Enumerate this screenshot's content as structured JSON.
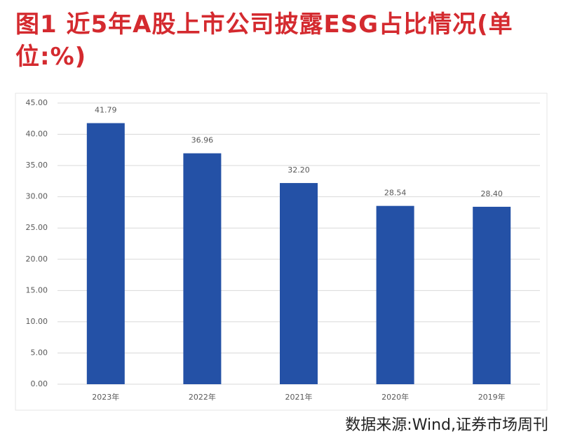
{
  "chart_data": {
    "type": "bar",
    "title": "图1 近5年A股上市公司披露ESG占比情况(单位:%)",
    "categories": [
      "2023年",
      "2022年",
      "2021年",
      "2020年",
      "2019年"
    ],
    "values": [
      41.79,
      36.96,
      32.2,
      28.54,
      28.4
    ],
    "value_labels": [
      "41.79",
      "36.96",
      "32.20",
      "28.54",
      "28.40"
    ],
    "color": "#2451a6",
    "ylim": [
      0,
      45
    ],
    "yticks": [
      {
        "value": 0,
        "label": "0.00"
      },
      {
        "value": 5,
        "label": "5.00"
      },
      {
        "value": 10,
        "label": "10.00"
      },
      {
        "value": 15,
        "label": "15.00"
      },
      {
        "value": 20,
        "label": "20.00"
      },
      {
        "value": 25,
        "label": "25.00"
      },
      {
        "value": 30,
        "label": "30.00"
      },
      {
        "value": 35,
        "label": "35.00"
      },
      {
        "value": 40,
        "label": "40.00"
      },
      {
        "value": 45,
        "label": "45.00"
      }
    ],
    "grid": true,
    "source": "数据来源:Wind,证券市场周刊"
  }
}
